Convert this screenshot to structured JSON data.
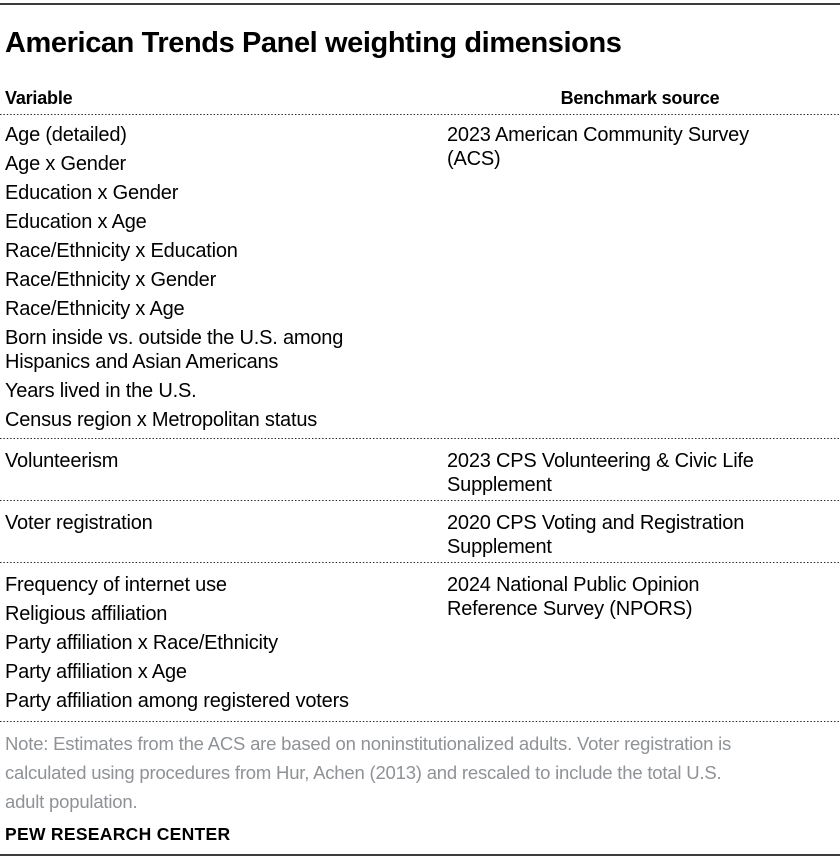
{
  "page": {
    "title": "American Trends Panel weighting dimensions",
    "note": "Note: Estimates from the ACS are based on noninstitutionalized adults. Voter registration is\ncalculated using procedures from Hur, Achen (2013) and rescaled to include the total U.S.\nadult population.",
    "footer": "PEW RESEARCH CENTER"
  },
  "colors": {
    "text": "#000000",
    "note_text": "#8f9296",
    "rule": "#3c3c3c"
  },
  "table": {
    "columns": {
      "variable": "Variable",
      "source": "Benchmark source"
    },
    "groups": [
      {
        "variables": [
          "Age (detailed)",
          "Age x Gender",
          "Education x Gender",
          "Education x Age",
          "Race/Ethnicity x Education",
          "Race/Ethnicity x Gender",
          "Race/Ethnicity x Age",
          "Born inside vs. outside the U.S. among\nHispanics and Asian Americans",
          "Years lived in the U.S.",
          "Census region x Metropolitan status"
        ],
        "source": "2023 American Community Survey\n(ACS)"
      },
      {
        "variables": [
          "Volunteerism"
        ],
        "source": "2023 CPS Volunteering & Civic Life\nSupplement"
      },
      {
        "variables": [
          "Voter registration"
        ],
        "source": "2020 CPS Voting and Registration\nSupplement"
      },
      {
        "variables": [
          "Frequency of internet use",
          "Religious affiliation",
          "Party affiliation x Race/Ethnicity",
          "Party affiliation x Age",
          "Party affiliation among registered voters"
        ],
        "source": "2024 National Public Opinion\nReference Survey (NPORS)"
      }
    ]
  }
}
